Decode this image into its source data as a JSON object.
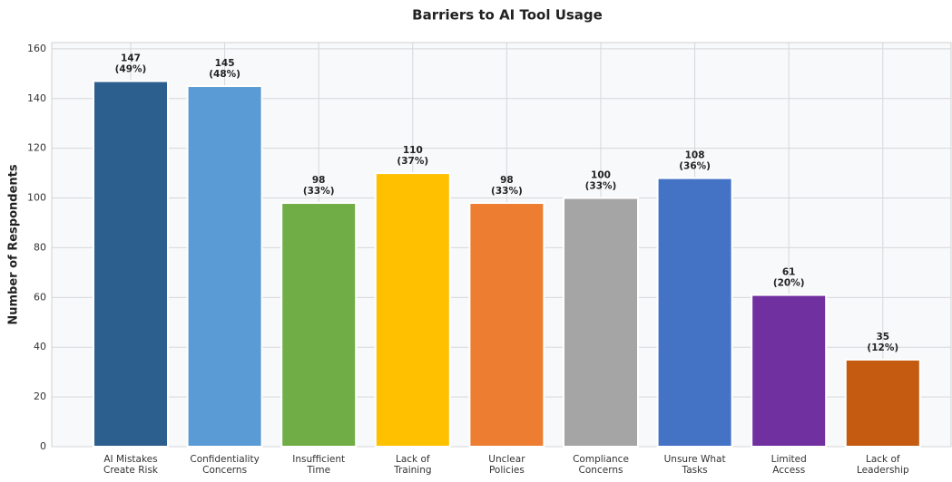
{
  "chart_data": {
    "type": "bar",
    "title": "Barriers to AI Tool Usage",
    "y_label": "Number of Respondents",
    "categories": [
      "AI Mistakes\nCreate Risk",
      "Confidentiality\nConcerns",
      "Insufficient\nTime",
      "Lack of\nTraining",
      "Unclear\nPolicies",
      "Compliance\nConcerns",
      "Unsure What\nTasks",
      "Limited\nAccess",
      "Lack of\nLeadership"
    ],
    "values": [
      147,
      145,
      98,
      110,
      98,
      100,
      108,
      61,
      35
    ],
    "value_labels": [
      "147\n(49%)",
      "145\n(48%)",
      "98\n(33%)",
      "110\n(37%)",
      "98\n(33%)",
      "100\n(33%)",
      "108\n(36%)",
      "61\n(20%)",
      "35\n(12%)"
    ],
    "colors": [
      "#2c5f8e",
      "#5b9bd5",
      "#70ad47",
      "#ffc000",
      "#ed7d31",
      "#a5a5a5",
      "#4472c4",
      "#7030a0",
      "#c55a11"
    ],
    "ylim": [
      0,
      162.5
    ],
    "yticks": [
      0,
      20,
      40,
      60,
      80,
      100,
      120,
      140,
      160
    ],
    "grid": true
  }
}
